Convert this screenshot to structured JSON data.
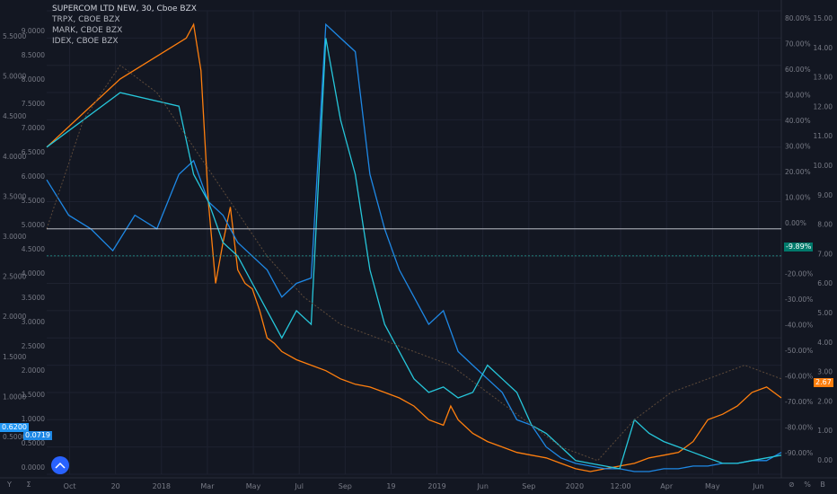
{
  "legend": {
    "main": "SUPERCOM LTD NEW, 30, Cboe BZX",
    "series": [
      "TRPX, CBOE BZX",
      "MARK, CBOE BZX",
      "IDEX, CBOE BZX"
    ]
  },
  "badges": {
    "left_top": "0.6200",
    "left_bottom": "0.0719",
    "pct_right": "-9.89%",
    "right_orange": "2.67"
  },
  "bottom_icons": [
    "Y",
    "Σ",
    "⊘",
    "%",
    "B"
  ],
  "chart_data": {
    "type": "line",
    "title": "SUPERCOM LTD NEW, 30, Cboe BZX",
    "x_ticks": [
      "Oct",
      "20",
      "2018",
      "Mar",
      "May",
      "Jul",
      "Sep",
      "19",
      "2019",
      "Jun",
      "Sep",
      "2020",
      "12:00",
      "Apr",
      "May",
      "Jun"
    ],
    "y_left_outer": [
      "5.5000",
      "5.0000",
      "4.5000",
      "4.0000",
      "3.5000",
      "3.0000",
      "2.5000",
      "2.0000",
      "1.5000",
      "1.0000",
      "0.5000"
    ],
    "y_left_inner": [
      "9.0000",
      "8.5000",
      "8.0000",
      "7.5000",
      "7.0000",
      "6.5000",
      "6.0000",
      "5.5000",
      "5.0000",
      "4.5000",
      "4.0000",
      "3.5000",
      "3.0000",
      "2.5000",
      "2.0000",
      "1.5000",
      "1.0000",
      "0.5000",
      "0.0000"
    ],
    "y_right_pct": [
      "80.00%",
      "70.00%",
      "60.00%",
      "50.00%",
      "40.00%",
      "30.00%",
      "20.00%",
      "10.00%",
      "0.00%",
      "-10.00%",
      "-20.00%",
      "-30.00%",
      "-40.00%",
      "-50.00%",
      "-60.00%",
      "-70.00%",
      "-80.00%",
      "-90.00%"
    ],
    "y_right_price": [
      "15.00",
      "14.00",
      "13.00",
      "12.00",
      "11.00",
      "10.00",
      "9.00",
      "8.00",
      "7.00",
      "6.00",
      "5.00",
      "4.00",
      "3.00",
      "2.00",
      "1.00",
      "0.00"
    ],
    "x_domain": [
      0,
      100
    ],
    "y_domain_pct": [
      -90,
      80
    ],
    "baseline_pct": 0,
    "current_pct": -9.89,
    "series": [
      {
        "color": "#ff7f0e",
        "x": [
          0,
          10,
          19,
          20,
          21,
          22,
          23,
          24,
          25,
          26,
          27,
          28,
          29,
          30,
          31,
          32,
          34,
          36,
          38,
          40,
          42,
          44,
          46,
          48,
          50,
          52,
          54,
          55,
          56,
          58,
          60,
          62,
          64,
          66,
          68,
          70,
          72,
          74,
          76,
          78,
          80,
          82,
          84,
          86,
          88,
          90,
          92,
          94,
          96,
          98,
          100
        ],
        "y": [
          30,
          55,
          70,
          75,
          58,
          10,
          -20,
          -5,
          8,
          -15,
          -20,
          -22,
          -30,
          -40,
          -42,
          -45,
          -48,
          -50,
          -52,
          -55,
          -57,
          -58,
          -60,
          -62,
          -65,
          -70,
          -72,
          -65,
          -70,
          -75,
          -78,
          -80,
          -82,
          -83,
          -84,
          -86,
          -88,
          -89,
          -88,
          -87,
          -86,
          -84,
          -83,
          -82,
          -78,
          -70,
          -68,
          -65,
          -60,
          -58,
          -62
        ]
      },
      {
        "color": "#1e88e5",
        "x": [
          0,
          3,
          6,
          9,
          12,
          15,
          18,
          20,
          22,
          24,
          26,
          28,
          30,
          32,
          34,
          36,
          38,
          40,
          42,
          44,
          46,
          48,
          50,
          52,
          54,
          56,
          58,
          60,
          62,
          64,
          66,
          68,
          70,
          72,
          74,
          76,
          78,
          80,
          82,
          84,
          86,
          88,
          90,
          92,
          94,
          96,
          98,
          100
        ],
        "y": [
          18,
          5,
          0,
          -8,
          5,
          0,
          20,
          25,
          10,
          5,
          -5,
          -10,
          -15,
          -25,
          -20,
          -18,
          75,
          70,
          65,
          20,
          0,
          -15,
          -25,
          -35,
          -30,
          -45,
          -50,
          -55,
          -60,
          -70,
          -72,
          -80,
          -84,
          -86,
          -87,
          -88,
          -88,
          -89,
          -89,
          -88,
          -88,
          -87,
          -87,
          -86,
          -86,
          -85,
          -85,
          -82
        ]
      },
      {
        "color": "#26c6da",
        "x": [
          0,
          10,
          18,
          20,
          22,
          24,
          26,
          28,
          30,
          32,
          34,
          36,
          38,
          40,
          42,
          44,
          46,
          48,
          50,
          52,
          54,
          56,
          58,
          60,
          62,
          64,
          66,
          68,
          70,
          72,
          74,
          76,
          78,
          80,
          82,
          84,
          86,
          88,
          90,
          92,
          94,
          96,
          98,
          100
        ],
        "y": [
          30,
          50,
          45,
          20,
          10,
          -5,
          -10,
          -20,
          -30,
          -40,
          -30,
          -35,
          70,
          40,
          20,
          -15,
          -35,
          -45,
          -55,
          -60,
          -58,
          -62,
          -60,
          -50,
          -55,
          -60,
          -72,
          -75,
          -80,
          -85,
          -86,
          -87,
          -88,
          -70,
          -75,
          -78,
          -80,
          -82,
          -84,
          -86,
          -86,
          -85,
          -84,
          -83
        ]
      },
      {
        "color": "#5d4a3a",
        "x": [
          0,
          5,
          10,
          15,
          20,
          25,
          30,
          35,
          40,
          45,
          50,
          55,
          60,
          65,
          70,
          75,
          80,
          85,
          90,
          95,
          100
        ],
        "y": [
          0,
          40,
          60,
          50,
          30,
          10,
          -10,
          -25,
          -35,
          -40,
          -45,
          -50,
          -60,
          -70,
          -80,
          -85,
          -70,
          -60,
          -55,
          -50,
          -55
        ]
      }
    ]
  }
}
